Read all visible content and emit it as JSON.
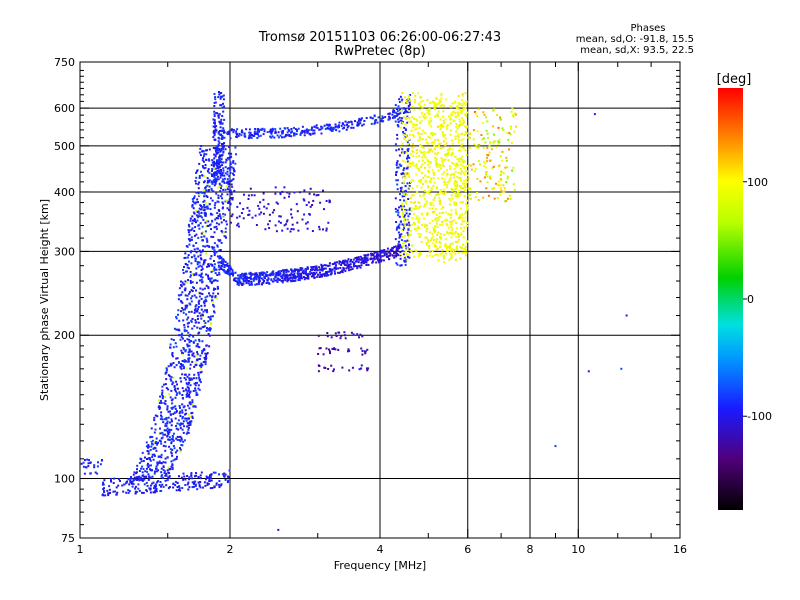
{
  "header": {
    "title_line1": "Tromsø 20151103 06:26:00-06:27:43",
    "title_line2": "RwPretec (8p)",
    "stats_heading": "Phases",
    "stats_o": "mean, sd,O: -91.8, 15.5",
    "stats_x": "mean, sd,X:  93.5, 22.5"
  },
  "chart_data": {
    "type": "scatter",
    "xlabel": "Frequency [MHz]",
    "ylabel": "Stationary phase Virtual Height [km]",
    "x_scale": "log",
    "y_scale": "log",
    "xlim": [
      1,
      16
    ],
    "ylim": [
      75,
      750
    ],
    "x_ticks": [
      1,
      2,
      4,
      6,
      8,
      10,
      16
    ],
    "x_tick_labels": [
      "1",
      "2",
      "4",
      "6",
      "8",
      "10",
      "16"
    ],
    "x_minor_ticks": [
      1.5,
      3,
      5,
      7,
      9,
      12,
      14
    ],
    "y_ticks": [
      75,
      100,
      200,
      300,
      400,
      500,
      600,
      750
    ],
    "y_tick_labels": [
      "75",
      "100",
      "200",
      "300",
      "400",
      "500",
      "600",
      "750"
    ],
    "y_minor_ticks": [
      80,
      85,
      90,
      95,
      110,
      120,
      130,
      140,
      150,
      160,
      170,
      180,
      190,
      220,
      240,
      260,
      280,
      320,
      340,
      360,
      380,
      420,
      440,
      460,
      480,
      520,
      540,
      560,
      580,
      620,
      640,
      660,
      680,
      700,
      720
    ],
    "grid": true,
    "grid_x": [
      2,
      4,
      6,
      8,
      10
    ],
    "grid_y": [
      100,
      200,
      300,
      400,
      500,
      600
    ],
    "colorbar": {
      "label": "[deg]",
      "range": [
        -180,
        180
      ],
      "ticks": [
        100,
        0,
        -100
      ],
      "tick_labels": [
        "100",
        "0",
        "-100"
      ]
    },
    "traces": [
      {
        "id": "o-E-layer",
        "x_range": [
          1.0,
          2.0
        ],
        "h_range": [
          93,
          103
        ],
        "phase": -95
      },
      {
        "id": "o-F1-cusp",
        "x_range": [
          1.35,
          1.95
        ],
        "h_range": [
          100,
          500
        ],
        "phase": -92
      },
      {
        "id": "o-F2-trace",
        "x_range": [
          1.9,
          4.4
        ],
        "h_range": [
          255,
          310
        ],
        "phase": -90
      },
      {
        "id": "o-F2-upper",
        "x_range": [
          1.85,
          4.6
        ],
        "h_range": [
          520,
          650
        ],
        "phase": -92
      },
      {
        "id": "x-F-trace",
        "x_range": [
          4.4,
          7.5
        ],
        "h_range": [
          290,
          640
        ],
        "phase": 95
      },
      {
        "id": "isolated-points",
        "points": [
          [
            10.8,
            583
          ],
          [
            12.5,
            220
          ],
          [
            10.5,
            168
          ],
          [
            12.2,
            170
          ],
          [
            9.0,
            117
          ],
          [
            2.5,
            78
          ]
        ],
        "phase": -90
      }
    ]
  }
}
